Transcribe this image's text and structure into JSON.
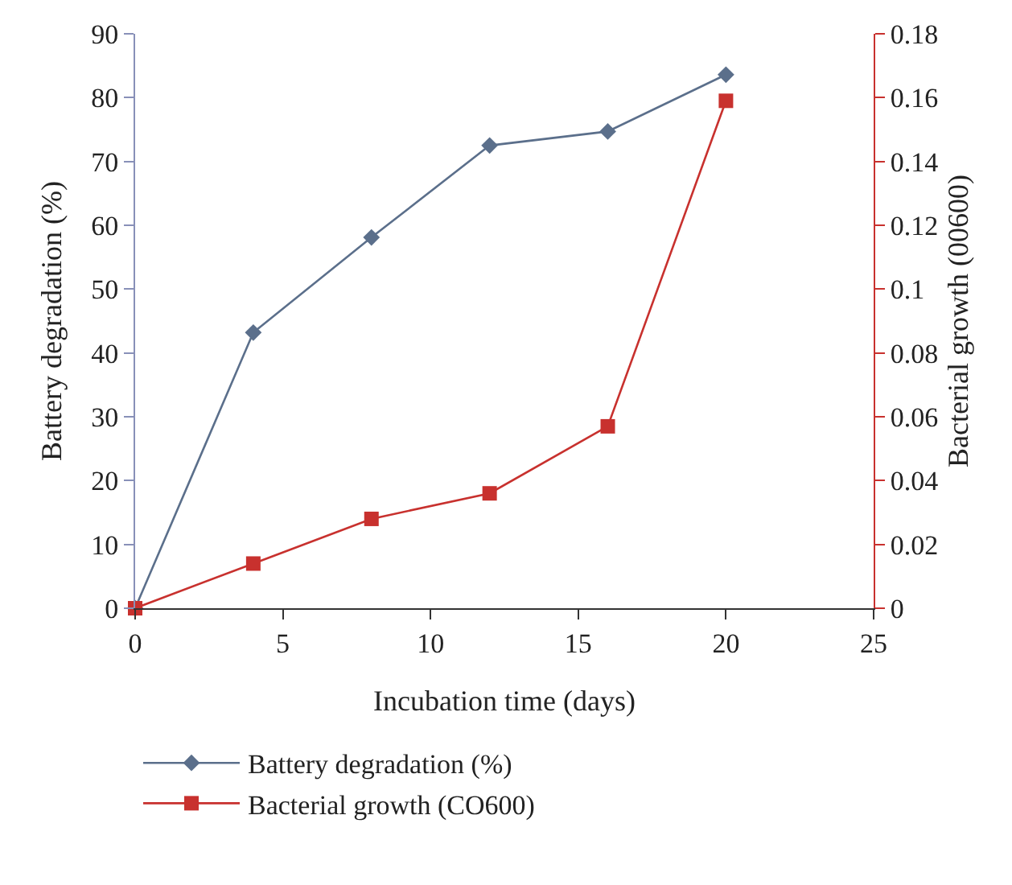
{
  "chart_data": {
    "type": "line",
    "xlabel": "Incubation time (days)",
    "ylabel": "Battery degradation (%)",
    "y2label": "Bacterial growth (00600)",
    "x": [
      0,
      4,
      8,
      12,
      16,
      20
    ],
    "series": [
      {
        "name": "Battery degradation (%)",
        "color": "#5b6f8b",
        "marker": "diamond",
        "values": [
          0,
          43.2,
          58.1,
          72.5,
          74.7,
          83.6
        ]
      },
      {
        "name": "Bacterial growth (CO600)",
        "color": "#c8312e",
        "marker": "square",
        "axis": "y2",
        "values": [
          0,
          0.014,
          0.028,
          0.036,
          0.057,
          0.159
        ]
      }
    ],
    "xlim": [
      0,
      25
    ],
    "xticks": [
      0,
      5,
      10,
      15,
      20,
      25
    ],
    "ylim": [
      0,
      90
    ],
    "yticks": [
      0,
      10,
      20,
      30,
      40,
      50,
      60,
      70,
      80,
      90
    ],
    "y2lim": [
      0,
      0.18
    ],
    "y2ticks": [
      0,
      0.02,
      0.04,
      0.06,
      0.08,
      0.1,
      0.12,
      0.14,
      0.16,
      0.18
    ],
    "grid": false,
    "legend": "bottom",
    "line_style": "solid"
  }
}
